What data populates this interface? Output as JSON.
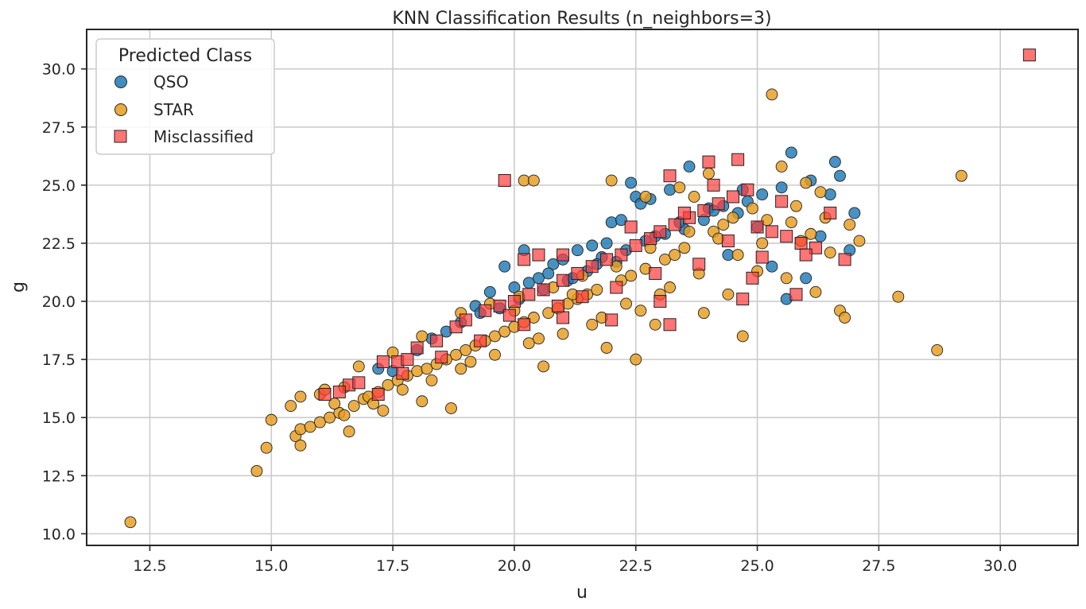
{
  "chart_data": {
    "type": "scatter",
    "title": "KNN Classification Results (n_neighbors=3)",
    "xlabel": "u",
    "ylabel": "g",
    "xlim": [
      11.2,
      31.6
    ],
    "ylim": [
      9.5,
      31.7
    ],
    "xticks": [
      "12.5",
      "15.0",
      "17.5",
      "20.0",
      "22.5",
      "25.0",
      "27.5",
      "30.0"
    ],
    "yticks": [
      "10.0",
      "12.5",
      "15.0",
      "17.5",
      "20.0",
      "22.5",
      "25.0",
      "27.5",
      "30.0"
    ],
    "grid": true,
    "legend": {
      "title": "Predicted Class",
      "placement": "top-left",
      "entries": [
        "QSO",
        "STAR",
        "Misclassified"
      ]
    },
    "colors": {
      "QSO": "#1f7ab4",
      "STAR": "#e69c1f",
      "Misclassified": "#ff3b3b"
    },
    "series": [
      {
        "name": "QSO",
        "marker": "circle",
        "points": [
          [
            19.8,
            21.5
          ],
          [
            20.2,
            22.2
          ],
          [
            20.5,
            21.0
          ],
          [
            20.8,
            21.6
          ],
          [
            21.0,
            21.8
          ],
          [
            21.3,
            22.2
          ],
          [
            21.6,
            22.4
          ],
          [
            21.9,
            22.5
          ],
          [
            22.0,
            23.4
          ],
          [
            22.2,
            23.5
          ],
          [
            22.4,
            25.1
          ],
          [
            22.5,
            24.5
          ],
          [
            22.6,
            24.2
          ],
          [
            22.8,
            24.4
          ],
          [
            23.2,
            24.8
          ],
          [
            23.6,
            25.8
          ],
          [
            24.0,
            24.0
          ],
          [
            24.4,
            22.0
          ],
          [
            24.6,
            23.8
          ],
          [
            25.0,
            23.2
          ],
          [
            25.3,
            21.5
          ],
          [
            25.6,
            20.1
          ],
          [
            25.7,
            26.4
          ],
          [
            26.0,
            21.0
          ],
          [
            26.3,
            22.8
          ],
          [
            26.6,
            26.0
          ],
          [
            26.7,
            25.4
          ],
          [
            26.9,
            22.2
          ],
          [
            27.0,
            23.8
          ],
          [
            19.2,
            19.8
          ],
          [
            19.5,
            20.4
          ],
          [
            20.0,
            20.6
          ],
          [
            20.3,
            20.8
          ],
          [
            20.7,
            21.2
          ],
          [
            21.1,
            20.9
          ],
          [
            21.5,
            21.3
          ],
          [
            21.8,
            21.9
          ],
          [
            22.1,
            21.7
          ],
          [
            22.7,
            22.6
          ],
          [
            23.1,
            22.9
          ],
          [
            23.5,
            23.1
          ],
          [
            23.9,
            23.5
          ],
          [
            24.3,
            24.1
          ],
          [
            24.7,
            24.8
          ],
          [
            25.1,
            24.6
          ],
          [
            17.2,
            17.1
          ],
          [
            17.5,
            17.0
          ],
          [
            18.0,
            17.9
          ],
          [
            18.3,
            18.4
          ],
          [
            18.6,
            18.7
          ],
          [
            18.9,
            19.1
          ],
          [
            19.3,
            19.5
          ],
          [
            19.7,
            19.7
          ],
          [
            20.1,
            20.1
          ],
          [
            20.6,
            20.5
          ],
          [
            21.2,
            21.0
          ],
          [
            21.7,
            21.6
          ],
          [
            22.3,
            22.2
          ],
          [
            22.9,
            22.8
          ],
          [
            23.4,
            23.4
          ],
          [
            24.1,
            23.9
          ],
          [
            24.8,
            24.3
          ],
          [
            25.5,
            24.9
          ],
          [
            26.1,
            25.2
          ],
          [
            26.5,
            24.6
          ]
        ]
      },
      {
        "name": "STAR",
        "marker": "circle",
        "points": [
          [
            12.1,
            10.5
          ],
          [
            14.7,
            12.7
          ],
          [
            14.9,
            13.7
          ],
          [
            15.0,
            14.9
          ],
          [
            15.4,
            15.5
          ],
          [
            15.5,
            14.2
          ],
          [
            15.6,
            14.5
          ],
          [
            15.6,
            13.8
          ],
          [
            15.6,
            15.9
          ],
          [
            15.8,
            14.6
          ],
          [
            16.0,
            14.8
          ],
          [
            16.0,
            16.0
          ],
          [
            16.2,
            15.0
          ],
          [
            16.4,
            15.2
          ],
          [
            16.5,
            16.3
          ],
          [
            16.6,
            14.4
          ],
          [
            16.7,
            15.5
          ],
          [
            16.8,
            17.2
          ],
          [
            16.9,
            15.8
          ],
          [
            17.0,
            15.9
          ],
          [
            17.2,
            16.1
          ],
          [
            17.4,
            16.4
          ],
          [
            17.6,
            16.6
          ],
          [
            17.8,
            16.8
          ],
          [
            18.0,
            17.0
          ],
          [
            18.1,
            15.7
          ],
          [
            18.2,
            17.1
          ],
          [
            18.4,
            17.3
          ],
          [
            18.6,
            17.5
          ],
          [
            18.7,
            15.4
          ],
          [
            18.8,
            17.7
          ],
          [
            19.0,
            17.9
          ],
          [
            19.2,
            18.1
          ],
          [
            19.4,
            18.3
          ],
          [
            19.6,
            18.5
          ],
          [
            19.8,
            18.7
          ],
          [
            20.0,
            18.9
          ],
          [
            20.2,
            19.1
          ],
          [
            20.4,
            19.3
          ],
          [
            20.6,
            17.2
          ],
          [
            20.7,
            19.5
          ],
          [
            20.9,
            19.7
          ],
          [
            21.1,
            19.9
          ],
          [
            21.3,
            20.1
          ],
          [
            21.5,
            20.3
          ],
          [
            21.7,
            20.5
          ],
          [
            21.9,
            18.0
          ],
          [
            22.0,
            25.2
          ],
          [
            22.2,
            20.9
          ],
          [
            22.4,
            21.1
          ],
          [
            22.5,
            17.5
          ],
          [
            22.7,
            21.4
          ],
          [
            22.9,
            19.0
          ],
          [
            23.1,
            21.8
          ],
          [
            23.3,
            22.0
          ],
          [
            23.5,
            22.3
          ],
          [
            23.7,
            24.5
          ],
          [
            23.9,
            19.5
          ],
          [
            24.1,
            23.0
          ],
          [
            24.3,
            23.3
          ],
          [
            24.5,
            23.6
          ],
          [
            24.7,
            18.5
          ],
          [
            24.9,
            24.0
          ],
          [
            25.1,
            22.5
          ],
          [
            25.3,
            28.9
          ],
          [
            25.5,
            25.8
          ],
          [
            25.7,
            23.4
          ],
          [
            25.9,
            22.6
          ],
          [
            26.1,
            22.9
          ],
          [
            26.3,
            24.7
          ],
          [
            26.5,
            22.1
          ],
          [
            26.7,
            19.6
          ],
          [
            26.8,
            19.3
          ],
          [
            26.9,
            23.3
          ],
          [
            27.1,
            22.6
          ],
          [
            27.9,
            20.2
          ],
          [
            28.7,
            17.9
          ],
          [
            29.2,
            25.4
          ],
          [
            20.2,
            25.2
          ],
          [
            20.4,
            25.2
          ],
          [
            17.5,
            17.8
          ],
          [
            18.1,
            18.5
          ],
          [
            18.9,
            19.5
          ],
          [
            19.5,
            19.9
          ],
          [
            20.1,
            20.2
          ],
          [
            20.8,
            20.6
          ],
          [
            21.4,
            21.1
          ],
          [
            22.1,
            21.5
          ],
          [
            22.8,
            22.3
          ],
          [
            23.6,
            23.0
          ],
          [
            24.2,
            22.7
          ],
          [
            25.0,
            21.3
          ],
          [
            25.6,
            21.0
          ],
          [
            26.2,
            20.4
          ],
          [
            24.4,
            20.3
          ],
          [
            23.2,
            20.6
          ],
          [
            22.6,
            19.6
          ],
          [
            21.8,
            19.3
          ],
          [
            21.0,
            18.6
          ],
          [
            20.3,
            18.2
          ],
          [
            19.6,
            17.7
          ],
          [
            18.9,
            17.1
          ],
          [
            18.3,
            16.6
          ],
          [
            17.7,
            16.2
          ],
          [
            17.1,
            15.6
          ],
          [
            16.5,
            15.1
          ],
          [
            16.1,
            16.2
          ],
          [
            16.3,
            15.6
          ],
          [
            17.3,
            15.3
          ],
          [
            19.1,
            17.4
          ],
          [
            20.5,
            18.4
          ],
          [
            21.6,
            19.0
          ],
          [
            22.3,
            19.9
          ],
          [
            23.0,
            20.3
          ],
          [
            23.8,
            21.2
          ],
          [
            24.6,
            22.0
          ],
          [
            25.2,
            23.5
          ],
          [
            25.8,
            24.1
          ],
          [
            26.4,
            23.6
          ],
          [
            26.0,
            25.1
          ],
          [
            24.0,
            25.5
          ],
          [
            23.4,
            24.9
          ],
          [
            22.7,
            24.5
          ],
          [
            21.2,
            20.3
          ],
          [
            20.0,
            19.6
          ]
        ]
      },
      {
        "name": "Misclassified",
        "marker": "square",
        "points": [
          [
            30.6,
            30.6
          ],
          [
            19.8,
            25.2
          ],
          [
            20.2,
            21.8
          ],
          [
            20.5,
            22.0
          ],
          [
            21.0,
            22.0
          ],
          [
            16.1,
            16.0
          ],
          [
            16.6,
            16.4
          ],
          [
            16.8,
            16.5
          ],
          [
            17.3,
            17.4
          ],
          [
            17.6,
            17.4
          ],
          [
            17.8,
            17.5
          ],
          [
            18.0,
            18.0
          ],
          [
            18.4,
            18.3
          ],
          [
            18.8,
            18.9
          ],
          [
            19.0,
            19.2
          ],
          [
            19.4,
            19.6
          ],
          [
            19.7,
            19.8
          ],
          [
            20.0,
            20.0
          ],
          [
            20.3,
            20.3
          ],
          [
            20.6,
            20.5
          ],
          [
            21.0,
            20.9
          ],
          [
            21.3,
            21.2
          ],
          [
            21.6,
            21.5
          ],
          [
            21.9,
            21.8
          ],
          [
            22.2,
            22.0
          ],
          [
            22.5,
            22.4
          ],
          [
            22.8,
            22.7
          ],
          [
            23.0,
            23.0
          ],
          [
            23.2,
            25.4
          ],
          [
            23.3,
            23.3
          ],
          [
            23.6,
            23.6
          ],
          [
            23.9,
            23.9
          ],
          [
            24.0,
            26.0
          ],
          [
            24.2,
            24.2
          ],
          [
            24.5,
            24.5
          ],
          [
            24.6,
            26.1
          ],
          [
            24.8,
            24.8
          ],
          [
            25.0,
            23.2
          ],
          [
            25.3,
            23.0
          ],
          [
            25.6,
            22.8
          ],
          [
            25.9,
            22.5
          ],
          [
            26.2,
            22.3
          ],
          [
            26.5,
            23.8
          ],
          [
            26.8,
            21.8
          ],
          [
            25.8,
            20.3
          ],
          [
            24.7,
            20.1
          ],
          [
            23.2,
            19.0
          ],
          [
            22.0,
            19.2
          ],
          [
            21.0,
            19.3
          ],
          [
            20.2,
            19.0
          ],
          [
            19.3,
            18.3
          ],
          [
            18.5,
            17.6
          ],
          [
            17.7,
            16.9
          ],
          [
            17.2,
            16.0
          ],
          [
            16.4,
            16.1
          ],
          [
            22.4,
            23.2
          ],
          [
            23.5,
            23.8
          ],
          [
            24.4,
            22.6
          ],
          [
            25.1,
            21.9
          ],
          [
            23.8,
            21.6
          ],
          [
            22.9,
            21.2
          ],
          [
            22.1,
            20.6
          ],
          [
            21.4,
            20.2
          ],
          [
            20.9,
            19.8
          ],
          [
            19.9,
            19.4
          ],
          [
            24.1,
            25.0
          ],
          [
            25.5,
            24.3
          ],
          [
            26.0,
            22.0
          ],
          [
            23.0,
            20.0
          ],
          [
            24.9,
            21.0
          ]
        ]
      }
    ]
  }
}
